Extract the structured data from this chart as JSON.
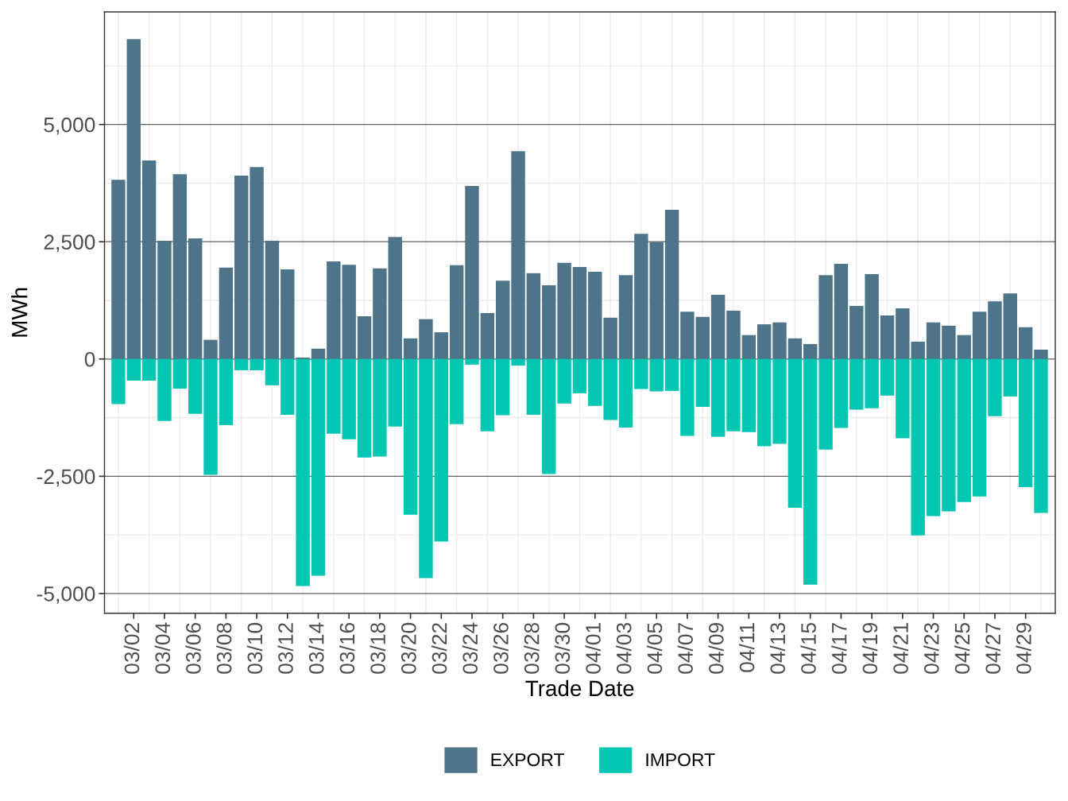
{
  "chart_data": {
    "type": "bar",
    "stacked": true,
    "xlabel": "Trade Date",
    "ylabel": "MWh",
    "categories": [
      null,
      "03/02",
      null,
      "03/04",
      null,
      "03/06",
      null,
      "03/08",
      null,
      "03/10",
      null,
      "03/12",
      null,
      "03/14",
      null,
      "03/16",
      null,
      "03/18",
      null,
      "03/20",
      null,
      "03/22",
      null,
      "03/24",
      null,
      "03/26",
      null,
      "03/28",
      null,
      "03/30",
      null,
      "04/01",
      null,
      "04/03",
      null,
      "04/05",
      null,
      "04/07",
      null,
      "04/09",
      null,
      "04/11",
      null,
      "04/13",
      null,
      "04/15",
      null,
      "04/17",
      null,
      "04/19",
      null,
      "04/21",
      null,
      "04/23",
      null,
      "04/25",
      null,
      "04/27",
      null,
      "04/29",
      null
    ],
    "series": [
      {
        "name": "EXPORT",
        "color": "#4e748a",
        "values": [
          3820,
          6820,
          4230,
          2520,
          3940,
          2570,
          410,
          1950,
          3910,
          4090,
          2520,
          1910,
          30,
          220,
          2080,
          2010,
          910,
          1930,
          2600,
          440,
          850,
          570,
          2000,
          3690,
          980,
          1670,
          4430,
          1830,
          1570,
          2050,
          1960,
          1860,
          880,
          1790,
          2670,
          2490,
          3180,
          1010,
          900,
          1370,
          1030,
          510,
          740,
          780,
          440,
          320,
          1790,
          2030,
          1130,
          1810,
          930,
          1080,
          370,
          780,
          710,
          510,
          1010,
          1230,
          1400,
          680,
          200
        ]
      },
      {
        "name": "IMPORT",
        "color": "#00c6b2",
        "values": [
          -960,
          -460,
          -460,
          -1320,
          -630,
          -1170,
          -2470,
          -1410,
          -240,
          -240,
          -560,
          -1190,
          -4840,
          -4620,
          -1590,
          -1710,
          -2100,
          -2080,
          -1440,
          -3320,
          -4670,
          -3890,
          -1390,
          -120,
          -1540,
          -1200,
          -140,
          -1190,
          -2450,
          -950,
          -730,
          -1000,
          -1300,
          -1460,
          -640,
          -690,
          -680,
          -1640,
          -1020,
          -1660,
          -1540,
          -1560,
          -1860,
          -1810,
          -3170,
          -4810,
          -1930,
          -1470,
          -1080,
          -1050,
          -780,
          -1690,
          -3760,
          -3350,
          -3250,
          -3050,
          -2930,
          -1220,
          -800,
          -2730,
          -3280
        ]
      }
    ],
    "ylim": [
      -5420,
      7400
    ],
    "yticks": [
      {
        "value": -5000,
        "label": "-5,000"
      },
      {
        "value": -2500,
        "label": "-2,500"
      },
      0,
      {
        "value": 2500,
        "label": "2,500"
      },
      {
        "value": 5000,
        "label": "5,000"
      }
    ],
    "grid": true,
    "legend": "bottom"
  }
}
